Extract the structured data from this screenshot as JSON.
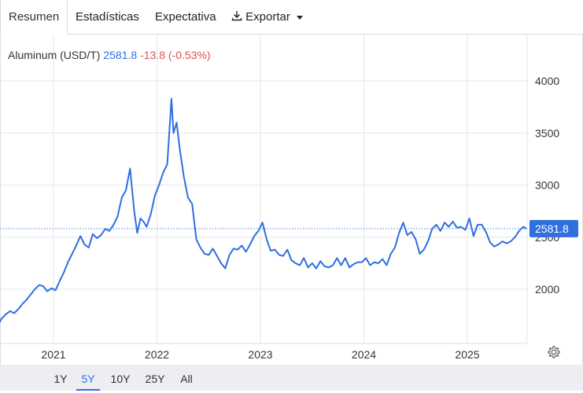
{
  "tabs": [
    {
      "label": "Resumen",
      "active": true
    },
    {
      "label": "Estadísticas",
      "active": false
    },
    {
      "label": "Expectativa",
      "active": false
    },
    {
      "label": "Exportar",
      "active": false
    }
  ],
  "legend": {
    "name": "Aluminum (USD/T)",
    "price": "2581.8",
    "change": "-13.8 (-0.53%)"
  },
  "current_price_label": "2581.8",
  "range_buttons": [
    {
      "label": "1Y",
      "active": false
    },
    {
      "label": "5Y",
      "active": true
    },
    {
      "label": "10Y",
      "active": false
    },
    {
      "label": "25Y",
      "active": false
    },
    {
      "label": "All",
      "active": false
    }
  ],
  "colors": {
    "line": "#2f6fe0",
    "positive": "#2f6fe0",
    "negative": "#d9534f",
    "price_tag": "#2f6fe0"
  },
  "icons": {
    "export": "download-icon",
    "settings": "gear-icon"
  },
  "chart_data": {
    "type": "line",
    "title": "",
    "xlabel": "",
    "ylabel": "",
    "ylim": [
      1500,
      4300
    ],
    "yticks": [
      2000,
      2500,
      3000,
      3500,
      4000
    ],
    "xticks": [
      {
        "label": "2021",
        "x": 2021.0
      },
      {
        "label": "2022",
        "x": 2022.0
      },
      {
        "label": "2023",
        "x": 2023.0
      },
      {
        "label": "2024",
        "x": 2024.0
      },
      {
        "label": "2025",
        "x": 2025.0
      }
    ],
    "xlim": [
      2020.47,
      2025.62
    ],
    "current": 2581.8,
    "grid": true,
    "series": [
      {
        "name": "Aluminum (USD/T)",
        "x": [
          2020.47,
          2020.5,
          2020.54,
          2020.58,
          2020.62,
          2020.66,
          2020.7,
          2020.74,
          2020.78,
          2020.82,
          2020.86,
          2020.9,
          2020.94,
          2020.98,
          2021.02,
          2021.06,
          2021.1,
          2021.14,
          2021.18,
          2021.22,
          2021.26,
          2021.3,
          2021.34,
          2021.38,
          2021.42,
          2021.46,
          2021.5,
          2021.54,
          2021.58,
          2021.62,
          2021.66,
          2021.7,
          2021.74,
          2021.78,
          2021.81,
          2021.84,
          2021.87,
          2021.9,
          2021.94,
          2021.98,
          2022.02,
          2022.06,
          2022.1,
          2022.14,
          2022.16,
          2022.19,
          2022.22,
          2022.26,
          2022.3,
          2022.34,
          2022.38,
          2022.42,
          2022.46,
          2022.5,
          2022.54,
          2022.58,
          2022.62,
          2022.66,
          2022.7,
          2022.74,
          2022.78,
          2022.82,
          2022.86,
          2022.9,
          2022.94,
          2022.98,
          2023.02,
          2023.06,
          2023.1,
          2023.14,
          2023.18,
          2023.22,
          2023.26,
          2023.3,
          2023.34,
          2023.38,
          2023.42,
          2023.46,
          2023.5,
          2023.54,
          2023.58,
          2023.62,
          2023.66,
          2023.7,
          2023.74,
          2023.78,
          2023.82,
          2023.86,
          2023.9,
          2023.94,
          2023.98,
          2024.02,
          2024.06,
          2024.1,
          2024.14,
          2024.18,
          2024.22,
          2024.26,
          2024.3,
          2024.34,
          2024.38,
          2024.42,
          2024.46,
          2024.5,
          2024.54,
          2024.58,
          2024.62,
          2024.66,
          2024.7,
          2024.74,
          2024.78,
          2024.82,
          2024.86,
          2024.9,
          2024.94,
          2024.98,
          2025.02,
          2025.06,
          2025.1,
          2025.14,
          2025.18,
          2025.22,
          2025.26,
          2025.3,
          2025.34,
          2025.38,
          2025.42,
          2025.46,
          2025.5,
          2025.54,
          2025.57
        ],
        "values": [
          1670,
          1720,
          1760,
          1790,
          1770,
          1810,
          1860,
          1900,
          1950,
          2000,
          2040,
          2030,
          1980,
          2010,
          1990,
          2080,
          2160,
          2260,
          2340,
          2420,
          2510,
          2430,
          2400,
          2530,
          2490,
          2520,
          2580,
          2560,
          2620,
          2700,
          2880,
          2950,
          3160,
          2750,
          2540,
          2680,
          2650,
          2600,
          2720,
          2900,
          3000,
          3120,
          3200,
          3830,
          3500,
          3600,
          3350,
          3080,
          2880,
          2820,
          2480,
          2400,
          2340,
          2330,
          2390,
          2320,
          2250,
          2200,
          2330,
          2390,
          2380,
          2420,
          2360,
          2430,
          2510,
          2560,
          2640,
          2480,
          2370,
          2380,
          2330,
          2320,
          2380,
          2280,
          2250,
          2230,
          2300,
          2210,
          2250,
          2200,
          2270,
          2220,
          2210,
          2230,
          2300,
          2230,
          2300,
          2210,
          2240,
          2260,
          2260,
          2300,
          2230,
          2260,
          2250,
          2290,
          2230,
          2340,
          2400,
          2540,
          2640,
          2520,
          2550,
          2480,
          2340,
          2380,
          2460,
          2580,
          2620,
          2560,
          2640,
          2600,
          2650,
          2590,
          2600,
          2570,
          2680,
          2510,
          2620,
          2620,
          2550,
          2450,
          2410,
          2430,
          2460,
          2440,
          2460,
          2500,
          2560,
          2600,
          2581.8
        ]
      }
    ]
  }
}
